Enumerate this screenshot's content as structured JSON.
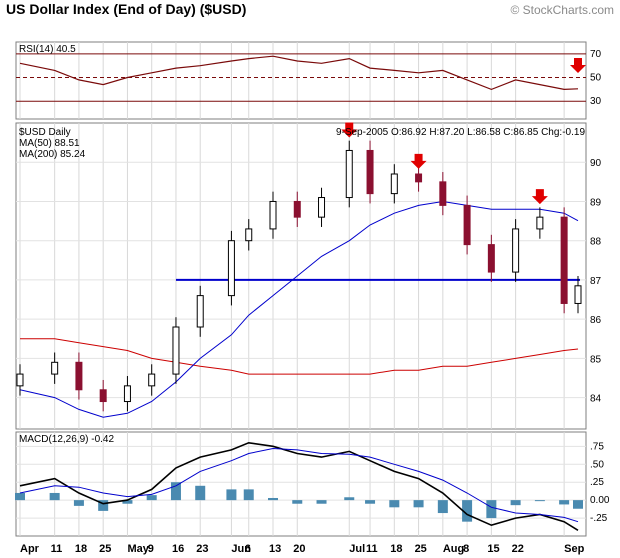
{
  "header": {
    "title": "US Dollar Index (End of Day) ($USD)",
    "credit": "© StockCharts.com"
  },
  "chart_data": [
    {
      "type": "line",
      "panel": "rsi",
      "label": "RSI(14) 40.5",
      "yticks": [
        "70",
        "50",
        "30"
      ],
      "ylim": [
        15,
        80
      ],
      "reference_lines": [
        70,
        50,
        30
      ],
      "x": [
        "Apr 1",
        "Apr 11",
        "Apr 18",
        "Apr 25",
        "May 2",
        "May 9",
        "May 16",
        "May 23",
        "Jun 1",
        "Jun 6",
        "Jun 13",
        "Jun 20",
        "Jun 27",
        "Jul 5",
        "Jul 11",
        "Jul 18",
        "Jul 25",
        "Aug 1",
        "Aug 8",
        "Aug 15",
        "Aug 22",
        "Aug 29",
        "Sep 5",
        "Sep 9"
      ],
      "values": [
        62,
        56,
        48,
        44,
        50,
        54,
        58,
        60,
        64,
        66,
        68,
        64,
        62,
        66,
        58,
        56,
        54,
        56,
        48,
        40,
        48,
        44,
        40,
        40.5
      ],
      "colors": {
        "line": "#7a0a0a",
        "ref": "#7a0a0a"
      }
    },
    {
      "type": "candlestick",
      "panel": "price",
      "label": "$USD Daily",
      "ohlc_readout": "9-Sep-2005 O:86.92 H:87.20 L:86.58 C:86.85 Chg:-0.19",
      "ma50_label": "MA(50) 88.51",
      "ma200_label": "MA(200) 85.24",
      "yticks": [
        "90",
        "89",
        "88",
        "87",
        "86",
        "85",
        "84"
      ],
      "ylim": [
        83.2,
        91.0
      ],
      "x": [
        "Apr 1",
        "Apr 11",
        "Apr 18",
        "Apr 25",
        "May 2",
        "May 9",
        "May 16",
        "May 23",
        "Jun 1",
        "Jun 6",
        "Jun 13",
        "Jun 20",
        "Jun 27",
        "Jul 5",
        "Jul 11",
        "Jul 18",
        "Jul 25",
        "Aug 1",
        "Aug 8",
        "Aug 15",
        "Aug 22",
        "Aug 29",
        "Sep 5",
        "Sep 9"
      ],
      "close": [
        84.6,
        84.9,
        84.2,
        83.9,
        84.3,
        84.6,
        85.8,
        86.6,
        88.0,
        88.3,
        89.0,
        88.6,
        89.1,
        90.3,
        89.2,
        89.7,
        89.5,
        88.9,
        87.9,
        87.2,
        88.3,
        88.6,
        86.4,
        86.85
      ],
      "ma50": [
        84.2,
        84.0,
        83.7,
        83.5,
        83.6,
        83.9,
        84.4,
        85.0,
        85.6,
        86.1,
        86.6,
        87.1,
        87.6,
        88.0,
        88.4,
        88.7,
        88.9,
        89.0,
        88.9,
        88.8,
        88.8,
        88.8,
        88.7,
        88.51
      ],
      "ma200": [
        85.5,
        85.5,
        85.4,
        85.3,
        85.2,
        85.0,
        84.9,
        84.8,
        84.7,
        84.6,
        84.6,
        84.6,
        84.6,
        84.6,
        84.6,
        84.7,
        84.7,
        84.8,
        84.8,
        84.9,
        85.0,
        85.1,
        85.2,
        85.24
      ],
      "support_level": 87.0,
      "arrows": [
        "Jul 5",
        "Jul 25",
        "Aug 29"
      ],
      "colors": {
        "up": "#000000",
        "down": "#8b1030",
        "ma50": "#0000cc",
        "ma200": "#cc0000",
        "support": "#0000cc",
        "arrow": "#e00000"
      }
    },
    {
      "type": "line",
      "panel": "macd",
      "label": "MACD(12,26,9) -0.42",
      "yticks": [
        ".75",
        ".50",
        ".25",
        "0.00",
        "-.25"
      ],
      "ylim": [
        -0.5,
        0.95
      ],
      "x": [
        "Apr 1",
        "Apr 11",
        "Apr 18",
        "Apr 25",
        "May 2",
        "May 9",
        "May 16",
        "May 23",
        "Jun 1",
        "Jun 6",
        "Jun 13",
        "Jun 20",
        "Jun 27",
        "Jul 5",
        "Jul 11",
        "Jul 18",
        "Jul 25",
        "Aug 1",
        "Aug 8",
        "Aug 15",
        "Aug 22",
        "Aug 29",
        "Sep 5",
        "Sep 9"
      ],
      "series": [
        {
          "name": "MACD",
          "values": [
            0.2,
            0.3,
            0.1,
            -0.05,
            0.0,
            0.15,
            0.45,
            0.6,
            0.7,
            0.8,
            0.75,
            0.65,
            0.6,
            0.68,
            0.55,
            0.4,
            0.3,
            0.1,
            -0.2,
            -0.35,
            -0.25,
            -0.2,
            -0.3,
            -0.42
          ]
        },
        {
          "name": "Signal",
          "values": [
            0.1,
            0.2,
            0.18,
            0.1,
            0.05,
            0.08,
            0.2,
            0.4,
            0.55,
            0.65,
            0.72,
            0.7,
            0.65,
            0.64,
            0.6,
            0.5,
            0.4,
            0.28,
            0.1,
            -0.1,
            -0.18,
            -0.2,
            -0.24,
            -0.3
          ]
        }
      ],
      "histogram": [
        0.1,
        0.1,
        -0.08,
        -0.15,
        -0.05,
        0.07,
        0.25,
        0.2,
        0.15,
        0.15,
        0.03,
        -0.05,
        -0.05,
        0.04,
        -0.05,
        -0.1,
        -0.1,
        -0.18,
        -0.3,
        -0.25,
        -0.07,
        0.0,
        -0.06,
        -0.12
      ],
      "colors": {
        "macd": "#000000",
        "signal": "#0000cc",
        "hist": "#4a8ab0"
      }
    }
  ],
  "x_axis": {
    "labels": [
      {
        "text": "Apr",
        "bold": true,
        "x": "Apr 1"
      },
      {
        "text": "11",
        "bold": false,
        "x": "Apr 11"
      },
      {
        "text": "18",
        "bold": false,
        "x": "Apr 18"
      },
      {
        "text": "25",
        "bold": false,
        "x": "Apr 25"
      },
      {
        "text": "May",
        "bold": true,
        "x": "May 2"
      },
      {
        "text": "9",
        "bold": false,
        "x": "May 9"
      },
      {
        "text": "16",
        "bold": false,
        "x": "May 16"
      },
      {
        "text": "23",
        "bold": false,
        "x": "May 23"
      },
      {
        "text": "Jun",
        "bold": true,
        "x": "Jun 1"
      },
      {
        "text": "6",
        "bold": false,
        "x": "Jun 6"
      },
      {
        "text": "13",
        "bold": false,
        "x": "Jun 13"
      },
      {
        "text": "20",
        "bold": false,
        "x": "Jun 20"
      },
      {
        "text": "Jul",
        "bold": true,
        "x": "Jul 5"
      },
      {
        "text": "11",
        "bold": false,
        "x": "Jul 11"
      },
      {
        "text": "18",
        "bold": false,
        "x": "Jul 18"
      },
      {
        "text": "25",
        "bold": false,
        "x": "Jul 25"
      },
      {
        "text": "Aug",
        "bold": true,
        "x": "Aug 1"
      },
      {
        "text": "8",
        "bold": false,
        "x": "Aug 8"
      },
      {
        "text": "15",
        "bold": false,
        "x": "Aug 15"
      },
      {
        "text": "22",
        "bold": false,
        "x": "Aug 22"
      },
      {
        "text": "Sep",
        "bold": true,
        "x": "Sep 5"
      }
    ]
  }
}
